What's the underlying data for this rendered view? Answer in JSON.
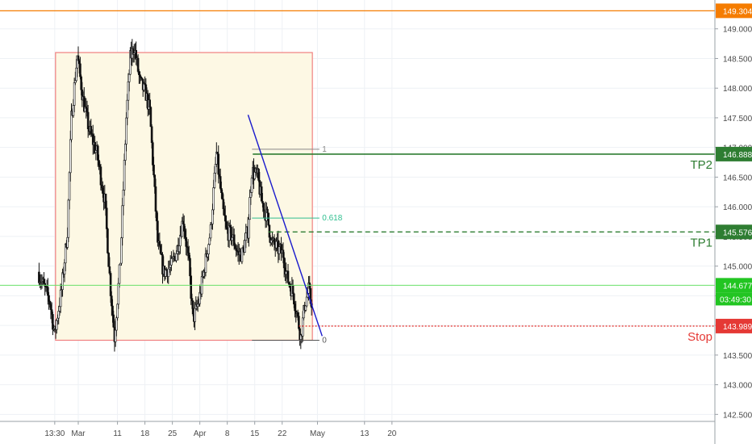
{
  "chart_data": {
    "type": "candlestick",
    "y_axis": {
      "range": [
        142.45,
        149.35
      ],
      "ticks": [
        "142.500",
        "143.000",
        "143.500",
        "144.000",
        "144.500",
        "145.000",
        "145.500",
        "146.000",
        "146.500",
        "147.000",
        "147.500",
        "148.000",
        "148.500",
        "149.000"
      ],
      "position": "right"
    },
    "x_axis": {
      "ticks": [
        {
          "label": "13:30",
          "day": -6
        },
        {
          "label": "Mar",
          "day": 0
        },
        {
          "label": "11",
          "day": 10
        },
        {
          "label": "18",
          "day": 17
        },
        {
          "label": "25",
          "day": 24
        },
        {
          "label": "Apr",
          "day": 31
        },
        {
          "label": "8",
          "day": 38
        },
        {
          "label": "15",
          "day": 45
        },
        {
          "label": "22",
          "day": 52
        },
        {
          "label": "May",
          "day": 61
        },
        {
          "label": "13",
          "day": 73
        },
        {
          "label": "20",
          "day": 80
        }
      ]
    },
    "price_path": [
      [
        -10,
        144.9
      ],
      [
        -7,
        144.4
      ],
      [
        -5.8,
        143.85
      ],
      [
        -4,
        144.6
      ],
      [
        -2.5,
        145.6
      ],
      [
        -1.5,
        147.5
      ],
      [
        0,
        148.55
      ],
      [
        1.5,
        147.8
      ],
      [
        3,
        147.3
      ],
      [
        5,
        146.9
      ],
      [
        7,
        146.1
      ],
      [
        8.5,
        144.6
      ],
      [
        9.5,
        143.8
      ],
      [
        11,
        145.1
      ],
      [
        12.5,
        147.5
      ],
      [
        13.5,
        148.5
      ],
      [
        14.5,
        148.7
      ],
      [
        16,
        148.1
      ],
      [
        17.5,
        147.9
      ],
      [
        18.5,
        147.6
      ],
      [
        19.5,
        146.5
      ],
      [
        20.5,
        145.4
      ],
      [
        22,
        144.9
      ],
      [
        24,
        145.0
      ],
      [
        25.5,
        145.3
      ],
      [
        27,
        145.8
      ],
      [
        28.5,
        145.0
      ],
      [
        29.5,
        144.1
      ],
      [
        31,
        144.4
      ],
      [
        32.5,
        145.0
      ],
      [
        34,
        145.6
      ],
      [
        35.5,
        146.9
      ],
      [
        37,
        146.0
      ],
      [
        38,
        145.6
      ],
      [
        39.5,
        145.5
      ],
      [
        41,
        145.2
      ],
      [
        42,
        145.2
      ],
      [
        43.5,
        145.6
      ],
      [
        44.5,
        146.6
      ],
      [
        46,
        146.5
      ],
      [
        47,
        146.1
      ],
      [
        48.5,
        145.8
      ],
      [
        49.5,
        145.4
      ],
      [
        51,
        145.3
      ],
      [
        52.5,
        145.2
      ],
      [
        53.5,
        144.8
      ],
      [
        55,
        144.55
      ],
      [
        56,
        144.2
      ],
      [
        57,
        143.8
      ],
      [
        58,
        144.35
      ],
      [
        59,
        144.6
      ],
      [
        59.5,
        144.4
      ]
    ],
    "rectangle": {
      "day_start": -5.8,
      "day_end": 59.7,
      "price_top": 148.6,
      "price_bottom": 143.75
    },
    "trendline": {
      "start": [
        43.3,
        147.55
      ],
      "end": [
        62.2,
        143.82
      ]
    },
    "fib_levels": [
      {
        "label": "1",
        "value": 146.97
      },
      {
        "label": "0.618",
        "value": 145.81
      },
      {
        "label": "0",
        "value": 143.75
      }
    ],
    "levels": [
      {
        "name": "level-top",
        "value": 149.304,
        "label": "149.304",
        "color": "#f57c00",
        "style": "solid"
      },
      {
        "name": "TP2",
        "value": 146.888,
        "label": "146.888",
        "color": "#2e7d32",
        "style": "solid"
      },
      {
        "name": "TP1",
        "value": 145.576,
        "label": "145.576",
        "color": "#2e7d32",
        "style": "dashed"
      },
      {
        "name": "current",
        "value": 144.677,
        "label": "144.677",
        "color": "#69e069",
        "style": "solid"
      },
      {
        "name": "Stop",
        "value": 143.989,
        "label": "143.989",
        "color": "#e53935",
        "style": "dotted"
      }
    ],
    "annotations": [
      {
        "text": "TP2",
        "color": "#2e7d32"
      },
      {
        "text": "TP1",
        "color": "#2e7d32"
      },
      {
        "text": "Stop",
        "color": "#e53935"
      }
    ],
    "countdown": "03:49:30",
    "colors": {
      "candle": "#111111",
      "rectangle_fill": "#fdf8e4",
      "rectangle_stroke": "#f08080",
      "trendline": "#1a1acc",
      "fib_1": "#888888",
      "fib_0618": "#2fbf8f",
      "fib_0": "#555555",
      "axis_text": "#4a4a4a",
      "grid": "#eef1f5"
    }
  }
}
